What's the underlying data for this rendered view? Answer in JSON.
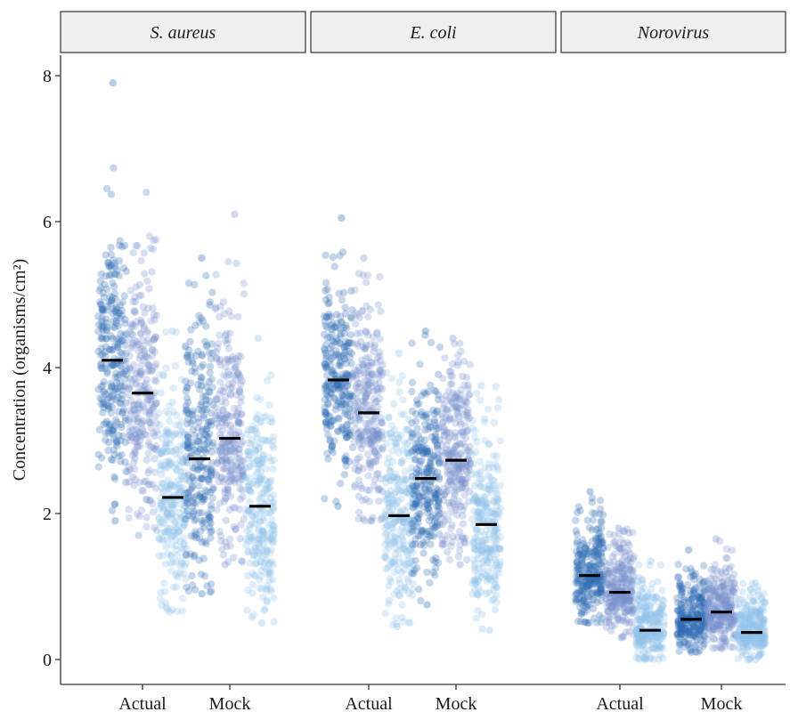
{
  "chart_data": {
    "type": "scatter",
    "subtype": "faceted jittered strip plot with median markers",
    "ylabel": "Concentration (organisms/cm²)",
    "ylim": [
      -0.35,
      8.7
    ],
    "yticks": [
      0,
      2,
      4,
      6,
      8
    ],
    "ytick_labels": [
      "0",
      "2",
      "4",
      "6",
      "8"
    ],
    "grid": false,
    "legend": "none",
    "x_categories": [
      "Actual",
      "Mock"
    ],
    "series_colors": [
      "#2f6db5",
      "#7790cc",
      "#8fc3ea"
    ],
    "median_color": "#000000",
    "facets": [
      {
        "label": "S. aureus",
        "groups": [
          {
            "category": "Actual",
            "subgroups": [
              {
                "series_index": 0,
                "median": 4.1,
                "range": [
                  1.9,
                  7.9
                ],
                "dense_range": [
                  2.5,
                  6.0
                ]
              },
              {
                "series_index": 1,
                "median": 3.65,
                "range": [
                  1.7,
                  6.4
                ],
                "dense_range": [
                  2.1,
                  5.3
                ]
              },
              {
                "series_index": 2,
                "median": 2.22,
                "range": [
                  0.65,
                  4.5
                ],
                "dense_range": [
                  0.8,
                  3.9
                ]
              }
            ]
          },
          {
            "category": "Mock",
            "subgroups": [
              {
                "series_index": 0,
                "median": 2.75,
                "range": [
                  0.9,
                  5.5
                ],
                "dense_range": [
                  1.1,
                  4.7
                ]
              },
              {
                "series_index": 1,
                "median": 3.03,
                "range": [
                  1.3,
                  6.1
                ],
                "dense_range": [
                  1.5,
                  5.2
                ]
              },
              {
                "series_index": 2,
                "median": 2.1,
                "range": [
                  0.5,
                  4.4
                ],
                "dense_range": [
                  0.7,
                  3.9
                ]
              }
            ]
          }
        ]
      },
      {
        "label": "E. coli",
        "groups": [
          {
            "category": "Actual",
            "subgroups": [
              {
                "series_index": 0,
                "median": 3.83,
                "range": [
                  2.1,
                  6.05
                ],
                "dense_range": [
                  2.4,
                  5.3
                ]
              },
              {
                "series_index": 1,
                "median": 3.38,
                "range": [
                  1.9,
                  5.5
                ],
                "dense_range": [
                  2.0,
                  5.0
                ]
              },
              {
                "series_index": 2,
                "median": 1.97,
                "range": [
                  0.45,
                  4.2
                ],
                "dense_range": [
                  0.7,
                  3.5
                ]
              }
            ]
          },
          {
            "category": "Mock",
            "subgroups": [
              {
                "series_index": 0,
                "median": 2.48,
                "range": [
                  0.75,
                  4.5
                ],
                "dense_range": [
                  1.2,
                  3.9
                ]
              },
              {
                "series_index": 1,
                "median": 2.73,
                "range": [
                  1.3,
                  4.4
                ],
                "dense_range": [
                  1.5,
                  4.2
                ]
              },
              {
                "series_index": 2,
                "median": 1.85,
                "range": [
                  0.4,
                  3.75
                ],
                "dense_range": [
                  0.6,
                  3.3
                ]
              }
            ]
          }
        ]
      },
      {
        "label": "Norovirus",
        "groups": [
          {
            "category": "Actual",
            "subgroups": [
              {
                "series_index": 0,
                "median": 1.15,
                "range": [
                  0.5,
                  2.3
                ],
                "dense_range": [
                  0.55,
                  2.05
                ]
              },
              {
                "series_index": 1,
                "median": 0.92,
                "range": [
                  0.3,
                  1.8
                ],
                "dense_range": [
                  0.4,
                  1.7
                ]
              },
              {
                "series_index": 2,
                "median": 0.4,
                "range": [
                  0.0,
                  1.35
                ],
                "dense_range": [
                  0.05,
                  1.1
                ]
              }
            ]
          },
          {
            "category": "Mock",
            "subgroups": [
              {
                "series_index": 0,
                "median": 0.55,
                "range": [
                  0.1,
                  1.5
                ],
                "dense_range": [
                  0.15,
                  1.2
                ]
              },
              {
                "series_index": 1,
                "median": 0.65,
                "range": [
                  0.15,
                  1.65
                ],
                "dense_range": [
                  0.2,
                  1.3
                ]
              },
              {
                "series_index": 2,
                "median": 0.37,
                "range": [
                  0.0,
                  1.05
                ],
                "dense_range": [
                  0.05,
                  0.95
                ]
              }
            ]
          }
        ]
      }
    ]
  }
}
